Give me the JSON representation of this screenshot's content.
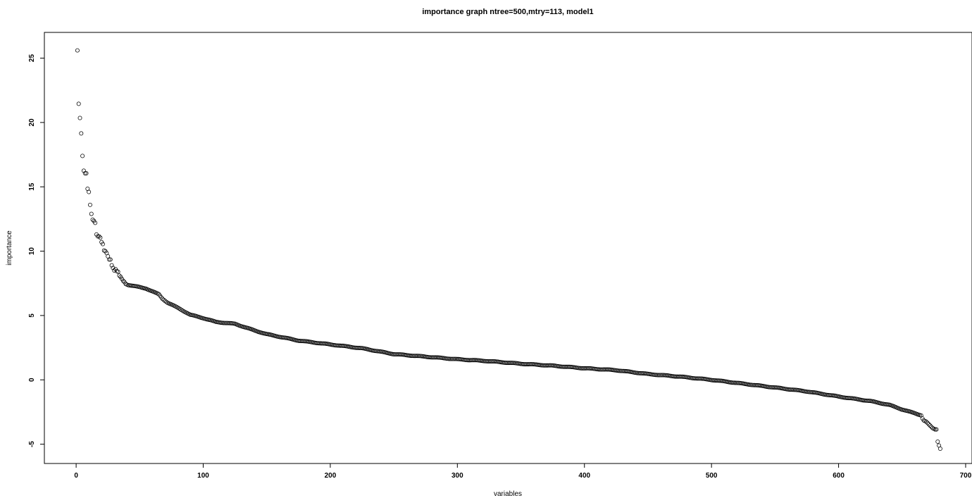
{
  "chart_data": {
    "type": "scatter",
    "title": "importance graph ntree=500,mtry=113, model1",
    "xlabel": "variables",
    "ylabel": "importance",
    "xlim": [
      -25,
      705
    ],
    "ylim": [
      -6.5,
      27
    ],
    "xticks": [
      0,
      100,
      200,
      300,
      400,
      500,
      600,
      700
    ],
    "yticks": [
      -5,
      0,
      5,
      10,
      15,
      20,
      25
    ],
    "grid": false,
    "legend": "none",
    "n_points": 680,
    "marker": "open-circle",
    "marker_color": "#000000",
    "head_points": [
      [
        1,
        25.6
      ],
      [
        2,
        21.45
      ],
      [
        3,
        20.35
      ],
      [
        4,
        19.15
      ],
      [
        5,
        17.4
      ],
      [
        6,
        16.25
      ],
      [
        7,
        16.05
      ],
      [
        8,
        16.05
      ],
      [
        9,
        14.85
      ],
      [
        10,
        14.6
      ],
      [
        11,
        13.6
      ],
      [
        12,
        12.9
      ],
      [
        13,
        12.45
      ],
      [
        14,
        12.35
      ],
      [
        15,
        12.2
      ],
      [
        16,
        11.3
      ],
      [
        17,
        11.15
      ],
      [
        18,
        11.15
      ],
      [
        19,
        11.05
      ],
      [
        20,
        10.7
      ],
      [
        21,
        10.55
      ],
      [
        22,
        10.05
      ],
      [
        23,
        10.0
      ],
      [
        24,
        9.85
      ],
      [
        25,
        9.6
      ],
      [
        26,
        9.35
      ],
      [
        27,
        9.35
      ],
      [
        28,
        8.9
      ],
      [
        29,
        8.7
      ],
      [
        30,
        8.5
      ],
      [
        31,
        8.6
      ],
      [
        32,
        8.45
      ],
      [
        33,
        8.4
      ],
      [
        34,
        8.1
      ],
      [
        35,
        8.0
      ],
      [
        36,
        7.85
      ],
      [
        37,
        7.7
      ],
      [
        38,
        7.6
      ],
      [
        39,
        7.45
      ],
      [
        40,
        7.4
      ]
    ],
    "curve_anchors": [
      [
        40,
        7.4
      ],
      [
        55,
        7.1
      ],
      [
        65,
        6.65
      ],
      [
        68,
        6.3
      ],
      [
        72,
        6.0
      ],
      [
        80,
        5.6
      ],
      [
        90,
        5.05
      ],
      [
        100,
        4.8
      ],
      [
        110,
        4.5
      ],
      [
        125,
        4.35
      ],
      [
        140,
        3.85
      ],
      [
        150,
        3.55
      ],
      [
        160,
        3.35
      ],
      [
        175,
        3.05
      ],
      [
        200,
        2.75
      ],
      [
        225,
        2.45
      ],
      [
        250,
        2.0
      ],
      [
        275,
        1.8
      ],
      [
        300,
        1.6
      ],
      [
        325,
        1.45
      ],
      [
        350,
        1.25
      ],
      [
        375,
        1.1
      ],
      [
        400,
        0.9
      ],
      [
        425,
        0.75
      ],
      [
        450,
        0.45
      ],
      [
        475,
        0.25
      ],
      [
        500,
        0.0
      ],
      [
        525,
        -0.3
      ],
      [
        550,
        -0.6
      ],
      [
        575,
        -0.9
      ],
      [
        600,
        -1.3
      ],
      [
        625,
        -1.65
      ],
      [
        640,
        -1.95
      ],
      [
        650,
        -2.3
      ],
      [
        660,
        -2.6
      ],
      [
        665,
        -2.75
      ]
    ],
    "tail_points": [
      [
        666,
        -3.0
      ],
      [
        667,
        -3.15
      ],
      [
        668,
        -3.2
      ],
      [
        669,
        -3.25
      ],
      [
        670,
        -3.35
      ],
      [
        671,
        -3.45
      ],
      [
        672,
        -3.55
      ],
      [
        673,
        -3.65
      ],
      [
        674,
        -3.75
      ],
      [
        675,
        -3.8
      ],
      [
        676,
        -3.85
      ],
      [
        677,
        -3.85
      ],
      [
        678,
        -4.8
      ],
      [
        679,
        -5.1
      ],
      [
        680,
        -5.35
      ]
    ]
  }
}
